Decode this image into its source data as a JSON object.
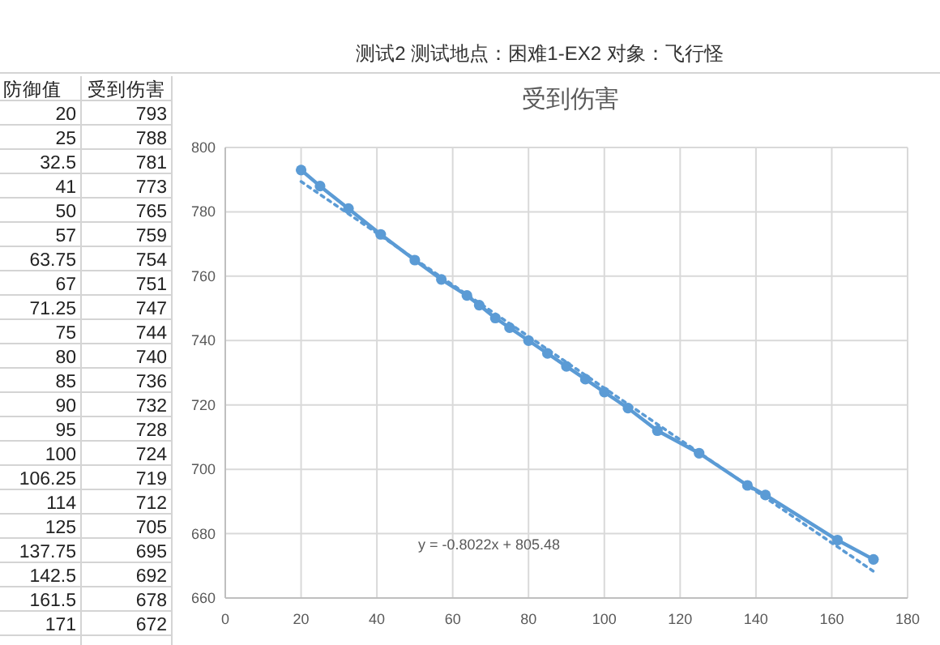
{
  "chart_data": {
    "type": "line",
    "title": "受到伤害",
    "annotations": [
      "测试2  测试地点：困难1-EX2 对象：飞行怪",
      "y = -0.8022x + 805.48",
      "防御值",
      "受到伤害",
      "20",
      "793",
      "25",
      "788",
      "32.5",
      "781",
      "41",
      "773",
      "50",
      "765",
      "57",
      "759",
      "63.75",
      "754",
      "67",
      "751",
      "71.25",
      "747",
      "75",
      "744",
      "80",
      "740",
      "85",
      "736",
      "90",
      "732",
      "95",
      "728",
      "100",
      "724",
      "106.25",
      "719",
      "114",
      "712",
      "125",
      "705",
      "137.75",
      "695",
      "142.5",
      "692",
      "161.5",
      "678",
      "171",
      "672"
    ],
    "x": [
      20,
      25,
      32.5,
      41,
      50,
      57,
      63.75,
      67,
      71.25,
      75,
      80,
      85,
      90,
      95,
      100,
      106.25,
      114,
      125,
      137.75,
      142.5,
      161.5,
      171
    ],
    "series": [
      {
        "color": "#5b9bd5",
        "values": [
          793,
          788,
          781,
          773,
          765,
          759,
          754,
          751,
          747,
          744,
          740,
          736,
          732,
          728,
          724,
          719,
          712,
          705,
          695,
          692,
          678,
          672
        ],
        "marker": "circle",
        "line_style": "solid"
      },
      {
        "color": "#5b9bd5",
        "type": "line",
        "x": [
          20,
          171
        ],
        "values": [
          789.4,
          668.3
        ],
        "marker": "none",
        "line_style": "dotted"
      }
    ],
    "xlim": [
      0,
      180
    ],
    "xticks": [
      0,
      20,
      40,
      60,
      80,
      100,
      120,
      140,
      160,
      180
    ],
    "ylim": [
      660,
      800
    ],
    "yticks": [
      660,
      680,
      700,
      720,
      740,
      760,
      780,
      800
    ],
    "grid": true
  }
}
